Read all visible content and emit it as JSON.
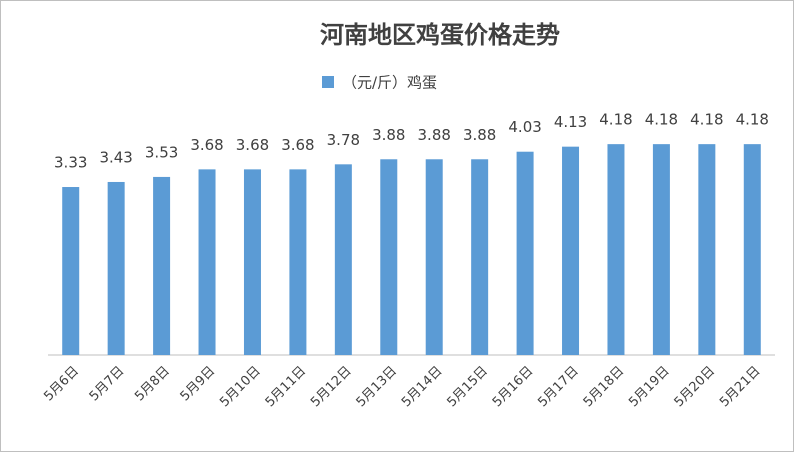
{
  "chart_data": {
    "type": "bar",
    "title": "河南地区鸡蛋价格走势",
    "categories": [
      "5月6日",
      "5月7日",
      "5月8日",
      "5月9日",
      "5月10日",
      "5月11日",
      "5月12日",
      "5月13日",
      "5月14日",
      "5月15日",
      "5月16日",
      "5月17日",
      "5月18日",
      "5月19日",
      "5月20日",
      "5月21日"
    ],
    "series": [
      {
        "name": "（元/斤）鸡蛋",
        "color": "#5b9bd5",
        "values": [
          3.33,
          3.43,
          3.53,
          3.68,
          3.68,
          3.68,
          3.78,
          3.88,
          3.88,
          3.88,
          4.03,
          4.13,
          4.18,
          4.18,
          4.18,
          4.18
        ]
      }
    ],
    "ylim": [
      0,
      4.5
    ]
  }
}
